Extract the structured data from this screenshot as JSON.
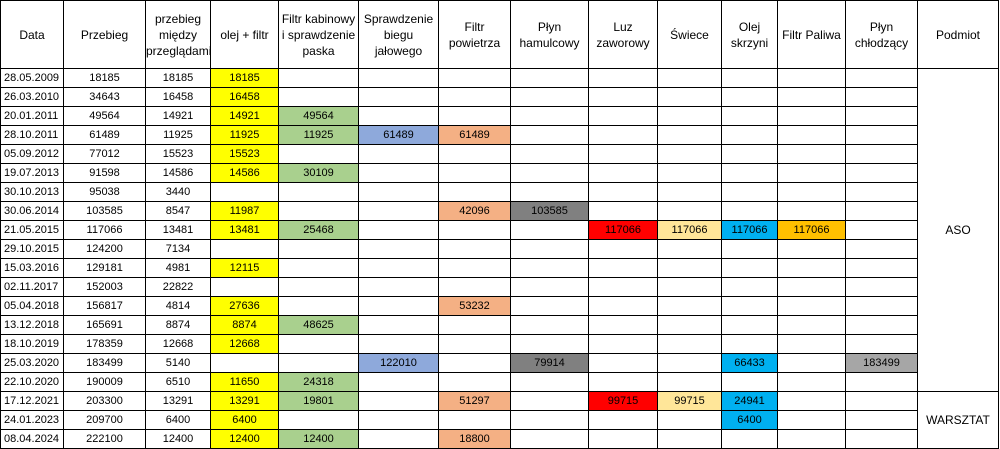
{
  "headers": [
    "Data",
    "Przebieg",
    "przebieg między przeglądami",
    "olej + filtr",
    "Filtr kabinowy i sprawdzenie paska",
    "Sprawdzenie biegu jałowego",
    "Filtr powietrza",
    "Płyn hamulcowy",
    "Luz zaworowy",
    "Świece",
    "Olej skrzyni",
    "Filtr Paliwa",
    "Płyn chłodzący",
    "Podmiot"
  ],
  "colors": {
    "olej_filtr": "#ffff00",
    "filtr_kabinowy": "#a9d08e",
    "bieg_jalowy": "#8ea9db",
    "filtr_powietrza": "#f4b084",
    "plyn_hamulcowy": "#808080",
    "luz_zaworowy": "#ff0000",
    "swiece": "#ffe699",
    "olej_skrzyni": "#00b0f0",
    "filtr_paliwa": "#ffc000",
    "plyn_chlodzacy": "#a6a6a6"
  },
  "rows": [
    [
      "28.05.2009",
      "18185",
      "18185",
      "18185",
      "",
      "",
      "",
      "",
      "",
      "",
      "",
      "",
      ""
    ],
    [
      "26.03.2010",
      "34643",
      "16458",
      "16458",
      "",
      "",
      "",
      "",
      "",
      "",
      "",
      "",
      ""
    ],
    [
      "20.01.2011",
      "49564",
      "14921",
      "14921",
      "49564",
      "",
      "",
      "",
      "",
      "",
      "",
      "",
      ""
    ],
    [
      "28.10.2011",
      "61489",
      "11925",
      "11925",
      "11925",
      "61489",
      "61489",
      "",
      "",
      "",
      "",
      "",
      ""
    ],
    [
      "05.09.2012",
      "77012",
      "15523",
      "15523",
      "",
      "",
      "",
      "",
      "",
      "",
      "",
      "",
      ""
    ],
    [
      "19.07.2013",
      "91598",
      "14586",
      "14586",
      "30109",
      "",
      "",
      "",
      "",
      "",
      "",
      "",
      ""
    ],
    [
      "30.10.2013",
      "95038",
      "3440",
      "",
      "",
      "",
      "",
      "",
      "",
      "",
      "",
      "",
      ""
    ],
    [
      "30.06.2014",
      "103585",
      "8547",
      "11987",
      "",
      "",
      "42096",
      "103585",
      "",
      "",
      "",
      "",
      ""
    ],
    [
      "21.05.2015",
      "117066",
      "13481",
      "13481",
      "25468",
      "",
      "",
      "",
      "117066",
      "117066",
      "117066",
      "117066",
      ""
    ],
    [
      "29.10.2015",
      "124200",
      "7134",
      "",
      "",
      "",
      "",
      "",
      "",
      "",
      "",
      "",
      ""
    ],
    [
      "15.03.2016",
      "129181",
      "4981",
      "12115",
      "",
      "",
      "",
      "",
      "",
      "",
      "",
      "",
      ""
    ],
    [
      "02.11.2017",
      "152003",
      "22822",
      "",
      "",
      "",
      "",
      "",
      "",
      "",
      "",
      "",
      ""
    ],
    [
      "05.04.2018",
      "156817",
      "4814",
      "27636",
      "",
      "",
      "53232",
      "",
      "",
      "",
      "",
      "",
      ""
    ],
    [
      "13.12.2018",
      "165691",
      "8874",
      "8874",
      "48625",
      "",
      "",
      "",
      "",
      "",
      "",
      "",
      ""
    ],
    [
      "18.10.2019",
      "178359",
      "12668",
      "12668",
      "",
      "",
      "",
      "",
      "",
      "",
      "",
      "",
      ""
    ],
    [
      "25.03.2020",
      "183499",
      "5140",
      "",
      "",
      "122010",
      "",
      "79914",
      "",
      "",
      "66433",
      "",
      "183499"
    ],
    [
      "22.10.2020",
      "190009",
      "6510",
      "11650",
      "24318",
      "",
      "",
      "",
      "",
      "",
      "",
      "",
      ""
    ],
    [
      "17.12.2021",
      "203300",
      "13291",
      "13291",
      "19801",
      "",
      "51297",
      "",
      "99715",
      "99715",
      "24941",
      "",
      ""
    ],
    [
      "24.01.2023",
      "209700",
      "6400",
      "6400",
      "",
      "",
      "",
      "",
      "",
      "",
      "6400",
      "",
      ""
    ],
    [
      "08.04.2024",
      "222100",
      "12400",
      "12400",
      "12400",
      "",
      "18800",
      "",
      "",
      "",
      "",
      "",
      ""
    ]
  ],
  "podmiot": [
    {
      "label": "ASO",
      "start_row": 0,
      "row_count": 17
    },
    {
      "label": "WARSZTAT",
      "start_row": 17,
      "row_count": 3
    }
  ]
}
